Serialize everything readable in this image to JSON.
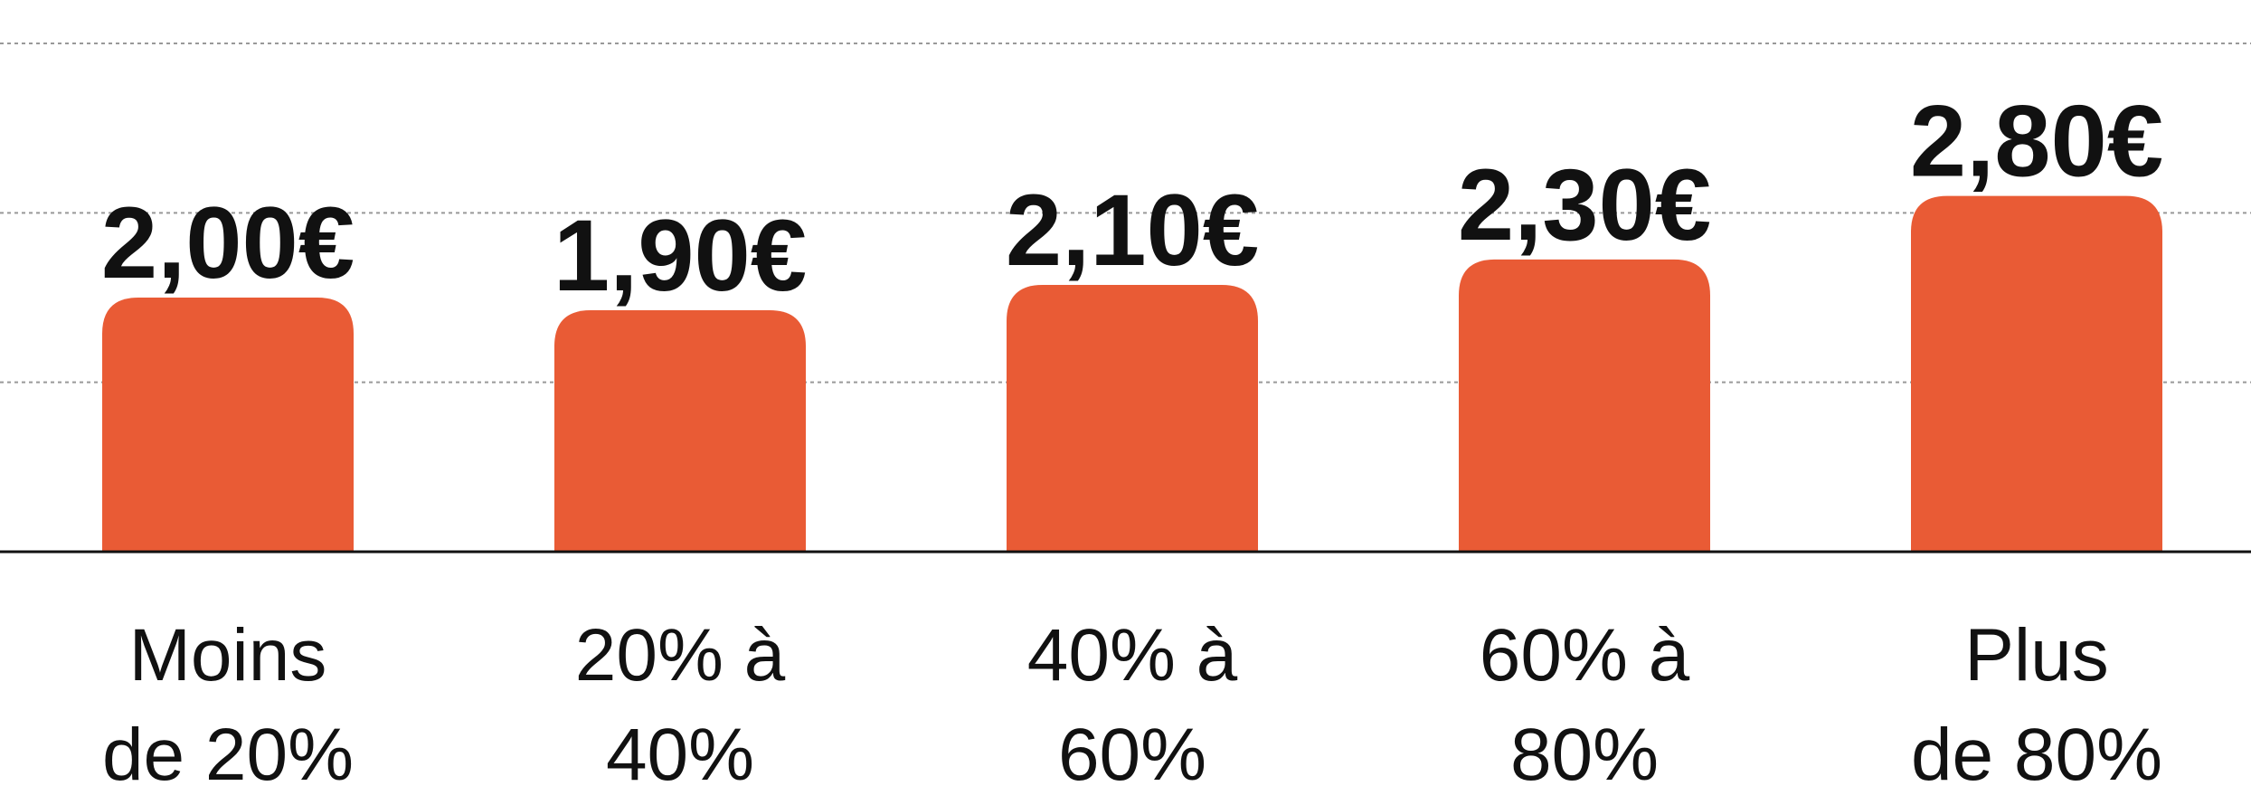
{
  "chart_data": {
    "type": "bar",
    "categories": [
      "Moins\nde 20%",
      "20% à\n40%",
      "40% à\n60%",
      "60% à\n80%",
      "Plus\nde 80%"
    ],
    "values": [
      2.0,
      1.9,
      2.1,
      2.3,
      2.8
    ],
    "value_labels": [
      "2,00€",
      "1,90€",
      "2,10€",
      "2,30€",
      "2,80€"
    ],
    "color": "#e95b35",
    "ylim": [
      0,
      4
    ],
    "yticks": [
      0,
      1.3333,
      2.6667,
      4
    ],
    "grid": true
  }
}
